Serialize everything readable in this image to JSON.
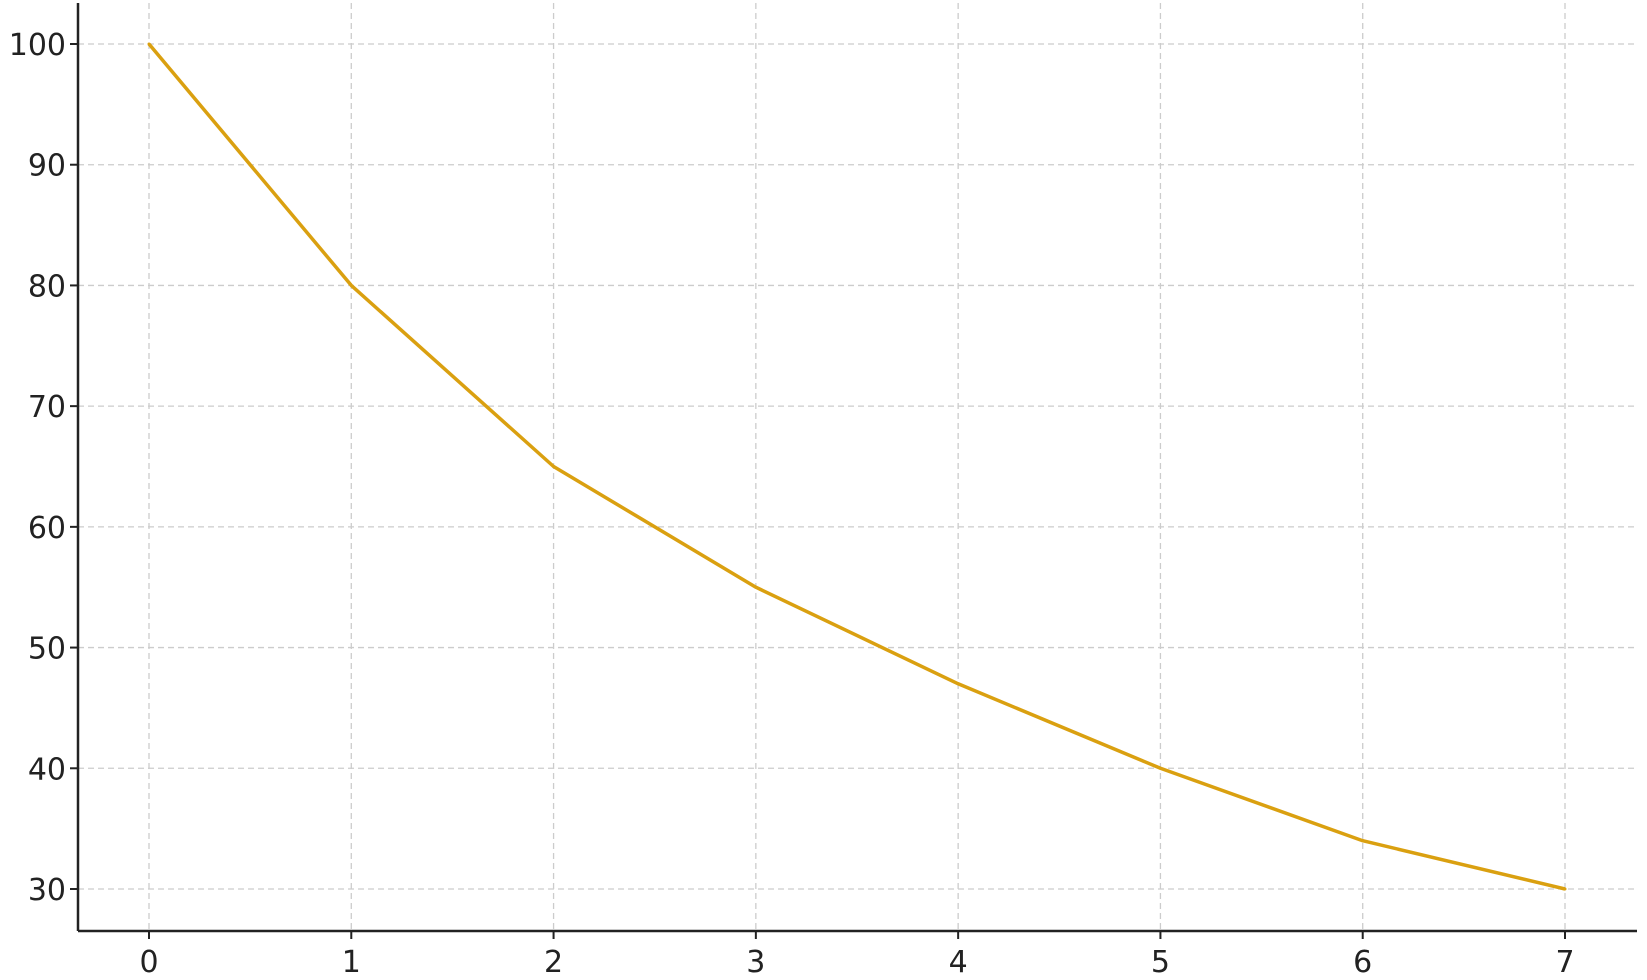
{
  "chart_data": {
    "type": "line",
    "title": "",
    "xlabel": "",
    "ylabel": "",
    "x": [
      0,
      1,
      2,
      3,
      4,
      5,
      6,
      7
    ],
    "series": [
      {
        "values": [
          100,
          80,
          65,
          55,
          47,
          40,
          34,
          30
        ],
        "color": "#DAA010"
      }
    ],
    "xlim": [
      -0.35,
      7.35
    ],
    "ylim": [
      26.5,
      103.5
    ],
    "xticks": [
      "0",
      "1",
      "2",
      "3",
      "4",
      "5",
      "6",
      "7"
    ],
    "yticks": [
      "30",
      "40",
      "50",
      "60",
      "70",
      "80",
      "90",
      "100"
    ],
    "grid": true,
    "grid_style": "dashed",
    "grid_color": "#cccccc",
    "legend": "none"
  }
}
